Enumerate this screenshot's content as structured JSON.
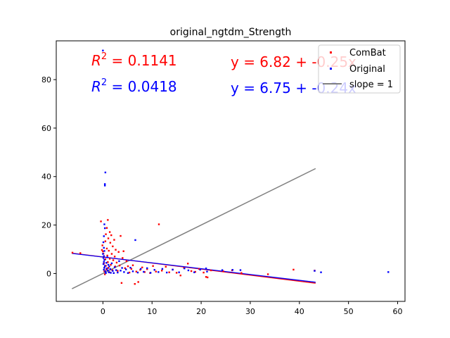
{
  "chart_data": {
    "type": "scatter",
    "title": "original_ngtdm_Strength",
    "xlabel": "",
    "ylabel": "",
    "xlim": [
      -9.5,
      61.5
    ],
    "ylim": [
      -11.5,
      96.0
    ],
    "xticks": [
      0,
      10,
      20,
      30,
      40,
      50,
      60
    ],
    "yticks": [
      0,
      20,
      40,
      60,
      80
    ],
    "grid": false,
    "legend": {
      "position": "top-right",
      "entries": [
        "ComBat",
        "Original",
        "slope = 1"
      ]
    },
    "annotations": [
      {
        "id": "r2_combat",
        "prefix": "R",
        "sup": "2",
        "text": " = 0.1141",
        "color": "#ff0000"
      },
      {
        "id": "r2_original",
        "prefix": "R",
        "sup": "2",
        "text": " = 0.0418",
        "color": "#0000ff"
      },
      {
        "id": "eq_combat",
        "text": "y = 6.82 + -0.25x",
        "color": "#ff0000"
      },
      {
        "id": "eq_original",
        "text": "y = 6.75 + -0.24x",
        "color": "#0000ff"
      }
    ],
    "series": [
      {
        "name": "ComBat",
        "kind": "points",
        "color": "#ff0000",
        "points": [
          [
            -6.2,
            8.6
          ],
          [
            -4.6,
            8.4
          ],
          [
            -0.4,
            21.5
          ],
          [
            -0.2,
            9.7
          ],
          [
            -0.1,
            11.6
          ],
          [
            0.0,
            9.1
          ],
          [
            0.1,
            8.2
          ],
          [
            0.2,
            6.8
          ],
          [
            0.2,
            4.1
          ],
          [
            0.3,
            2.4
          ],
          [
            0.3,
            0.9
          ],
          [
            0.4,
            -0.3
          ],
          [
            0.5,
            5.9
          ],
          [
            0.5,
            13.3
          ],
          [
            0.6,
            16.2
          ],
          [
            0.6,
            3.2
          ],
          [
            0.7,
            1.6
          ],
          [
            0.8,
            18.8
          ],
          [
            0.8,
            10.3
          ],
          [
            0.9,
            7.4
          ],
          [
            1.0,
            22.1
          ],
          [
            1.0,
            4.7
          ],
          [
            1.1,
            14.5
          ],
          [
            1.1,
            2.3
          ],
          [
            1.2,
            9.4
          ],
          [
            1.3,
            0.6
          ],
          [
            1.4,
            17.1
          ],
          [
            1.4,
            6.1
          ],
          [
            1.5,
            12.7
          ],
          [
            1.6,
            3.6
          ],
          [
            1.7,
            15.8
          ],
          [
            1.8,
            8.1
          ],
          [
            1.9,
            1.4
          ],
          [
            2.0,
            11.2
          ],
          [
            2.1,
            5.5
          ],
          [
            2.2,
            0.2
          ],
          [
            2.3,
            13.9
          ],
          [
            2.4,
            7.0
          ],
          [
            2.5,
            2.9
          ],
          [
            2.6,
            9.8
          ],
          [
            2.8,
            4.5
          ],
          [
            3.0,
            1.1
          ],
          [
            3.2,
            8.9
          ],
          [
            3.4,
            3.3
          ],
          [
            3.6,
            15.5
          ],
          [
            3.8,
            -3.9
          ],
          [
            4.0,
            6.4
          ],
          [
            4.2,
            9.2
          ],
          [
            4.5,
            2.2
          ],
          [
            4.8,
            5.1
          ],
          [
            5.1,
            3.0
          ],
          [
            5.4,
            0.4
          ],
          [
            5.8,
            1.9
          ],
          [
            6.1,
            3.4
          ],
          [
            6.5,
            -4.3
          ],
          [
            6.8,
            0.8
          ],
          [
            7.2,
            -3.5
          ],
          [
            7.6,
            1.5
          ],
          [
            8.0,
            2.5
          ],
          [
            8.5,
            0.6
          ],
          [
            9.0,
            1.8
          ],
          [
            9.6,
            0.2
          ],
          [
            10.2,
            3.1
          ],
          [
            10.8,
            0.8
          ],
          [
            11.4,
            20.3
          ],
          [
            12.0,
            1.2
          ],
          [
            12.8,
            2.8
          ],
          [
            13.5,
            0.5
          ],
          [
            14.2,
            1.6
          ],
          [
            15.0,
            0.3
          ],
          [
            15.8,
            -0.8
          ],
          [
            16.5,
            2.4
          ],
          [
            17.3,
            4.1
          ],
          [
            18.0,
            1.0
          ],
          [
            18.8,
            0.7
          ],
          [
            19.6,
            1.9
          ],
          [
            20.5,
            0.4
          ],
          [
            21.0,
            -1.4
          ],
          [
            21.3,
            -1.6
          ],
          [
            22.0,
            1.3
          ],
          [
            24.5,
            0.9
          ],
          [
            26.3,
            1.3
          ],
          [
            28.2,
            0.2
          ],
          [
            33.6,
            -0.3
          ],
          [
            38.8,
            1.6
          ],
          [
            43.1,
            1.2
          ]
        ]
      },
      {
        "name": "Original",
        "kind": "points",
        "color": "#0000ff",
        "points": [
          [
            0.0,
            92.0
          ],
          [
            0.5,
            41.7
          ],
          [
            0.4,
            36.9
          ],
          [
            0.4,
            36.3
          ],
          [
            0.3,
            20.3
          ],
          [
            0.4,
            18.7
          ],
          [
            0.2,
            15.4
          ],
          [
            0.1,
            12.9
          ],
          [
            0.2,
            10.6
          ],
          [
            0.3,
            9.3
          ],
          [
            0.0,
            8.1
          ],
          [
            0.2,
            7.2
          ],
          [
            0.1,
            6.4
          ],
          [
            0.3,
            5.6
          ],
          [
            0.2,
            4.8
          ],
          [
            0.1,
            3.9
          ],
          [
            0.4,
            3.1
          ],
          [
            0.3,
            2.4
          ],
          [
            0.2,
            1.6
          ],
          [
            0.5,
            0.9
          ],
          [
            0.6,
            0.2
          ],
          [
            0.7,
            4.4
          ],
          [
            0.8,
            2.1
          ],
          [
            0.9,
            6.7
          ],
          [
            1.0,
            1.3
          ],
          [
            1.1,
            3.6
          ],
          [
            1.2,
            0.5
          ],
          [
            1.3,
            2.9
          ],
          [
            1.5,
            1.8
          ],
          [
            1.6,
            0.3
          ],
          [
            1.8,
            4.2
          ],
          [
            2.0,
            1.1
          ],
          [
            2.2,
            0.2
          ],
          [
            2.4,
            2.6
          ],
          [
            2.7,
            1.4
          ],
          [
            3.0,
            0.4
          ],
          [
            3.3,
            5.1
          ],
          [
            3.6,
            1.2
          ],
          [
            3.9,
            2.3
          ],
          [
            4.3,
            0.6
          ],
          [
            4.7,
            1.7
          ],
          [
            5.1,
            0.2
          ],
          [
            5.6,
            2.4
          ],
          [
            6.1,
            0.9
          ],
          [
            6.6,
            13.8
          ],
          [
            7.1,
            0.4
          ],
          [
            7.7,
            1.9
          ],
          [
            8.3,
            0.7
          ],
          [
            9.0,
            2.2
          ],
          [
            9.7,
            0.3
          ],
          [
            10.5,
            1.5
          ],
          [
            11.3,
            0.6
          ],
          [
            12.1,
            1.9
          ],
          [
            13.0,
            0.4
          ],
          [
            14.2,
            1.6
          ],
          [
            15.5,
            0.5
          ],
          [
            16.6,
            2.1
          ],
          [
            17.4,
            1.3
          ],
          [
            18.6,
            0.5
          ],
          [
            19.8,
            1.6
          ],
          [
            21.2,
            0.8
          ],
          [
            21.0,
            2.1
          ],
          [
            24.3,
            1.4
          ],
          [
            26.4,
            1.5
          ],
          [
            28.0,
            1.4
          ],
          [
            43.1,
            1.1
          ],
          [
            44.4,
            0.5
          ],
          [
            58.1,
            0.6
          ]
        ]
      },
      {
        "name": "ComBat fit",
        "kind": "line",
        "color": "#ff0000",
        "points": [
          [
            -6.3,
            8.4
          ],
          [
            43.3,
            -4.0
          ]
        ]
      },
      {
        "name": "Original fit",
        "kind": "line",
        "color": "#0000ff",
        "points": [
          [
            -6.3,
            8.3
          ],
          [
            43.3,
            -3.6
          ]
        ]
      },
      {
        "name": "slope = 1",
        "kind": "line",
        "color": "#808080",
        "points": [
          [
            -6.3,
            -6.3
          ],
          [
            43.3,
            43.3
          ]
        ]
      }
    ]
  }
}
